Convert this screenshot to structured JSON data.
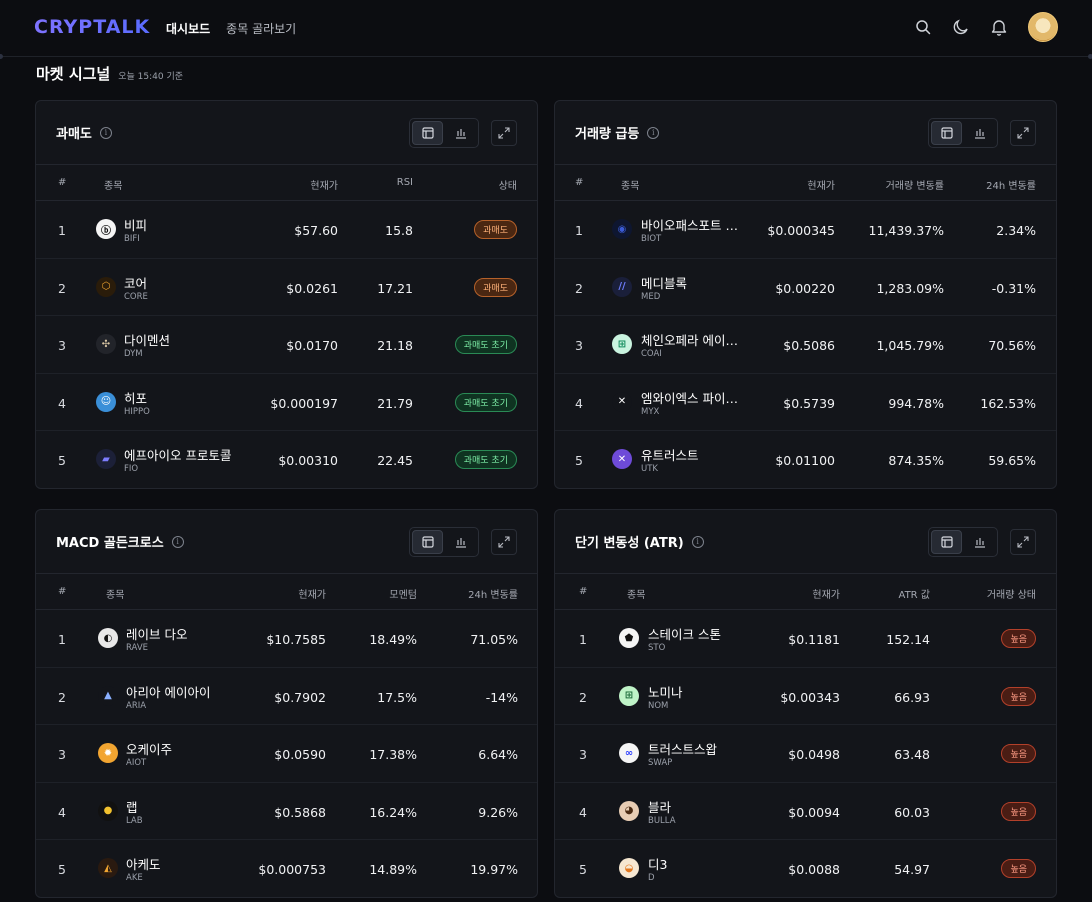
{
  "header": {
    "logo": "CRYPTALK",
    "nav": [
      "대시보드",
      "종목 골라보기"
    ],
    "icons": [
      "search-icon",
      "moon-icon",
      "bell-icon",
      "avatar"
    ]
  },
  "section": {
    "title": "마켓 시그널",
    "timestamp": "오늘 15:40 기준"
  },
  "panels": {
    "oversold": {
      "title": "과매도",
      "headers": [
        "#",
        "종목",
        "현재가",
        "RSI",
        "상태"
      ],
      "rows": [
        {
          "n": "1",
          "name": "비피",
          "sym": "BIFI",
          "price": "$57.60",
          "v1": "15.8",
          "status": "과매도"
        },
        {
          "n": "2",
          "name": "코어",
          "sym": "CORE",
          "price": "$0.0261",
          "v1": "17.21",
          "status": "과매도"
        },
        {
          "n": "3",
          "name": "다이멘션",
          "sym": "DYM",
          "price": "$0.0170",
          "v1": "21.18",
          "status": "과매도 초기"
        },
        {
          "n": "4",
          "name": "히포",
          "sym": "HIPPO",
          "price": "$0.000197",
          "v1": "21.79",
          "status": "과매도 초기"
        },
        {
          "n": "5",
          "name": "에프아이오 프로토콜",
          "sym": "FIO",
          "price": "$0.00310",
          "v1": "22.45",
          "status": "과매도 초기"
        }
      ]
    },
    "volume": {
      "title": "거래량 급등",
      "headers": [
        "#",
        "종목",
        "현재가",
        "거래량 변동률",
        "24h 변동률"
      ],
      "rows": [
        {
          "n": "1",
          "name": "바이오패스포트 …",
          "sym": "BIOT",
          "price": "$0.000345",
          "v1": "11,439.37%",
          "v2": "2.34%"
        },
        {
          "n": "2",
          "name": "메디블록",
          "sym": "MED",
          "price": "$0.00220",
          "v1": "1,283.09%",
          "v2": "-0.31%"
        },
        {
          "n": "3",
          "name": "체인오페라 에이…",
          "sym": "COAI",
          "price": "$0.5086",
          "v1": "1,045.79%",
          "v2": "70.56%"
        },
        {
          "n": "4",
          "name": "엠와이엑스 파이…",
          "sym": "MYX",
          "price": "$0.5739",
          "v1": "994.78%",
          "v2": "162.53%"
        },
        {
          "n": "5",
          "name": "유트러스트",
          "sym": "UTK",
          "price": "$0.01100",
          "v1": "874.35%",
          "v2": "59.65%"
        }
      ]
    },
    "macd": {
      "title": "MACD 골든크로스",
      "headers": [
        "#",
        "종목",
        "현재가",
        "모멘텀",
        "24h 변동률"
      ],
      "rows": [
        {
          "n": "1",
          "name": "레이브 다오",
          "sym": "RAVE",
          "price": "$10.7585",
          "v1": "18.49%",
          "v2": "71.05%"
        },
        {
          "n": "2",
          "name": "아리아 에이아이",
          "sym": "ARIA",
          "price": "$0.7902",
          "v1": "17.5%",
          "v2": "-14%"
        },
        {
          "n": "3",
          "name": "오케이주",
          "sym": "AIOT",
          "price": "$0.0590",
          "v1": "17.38%",
          "v2": "6.64%"
        },
        {
          "n": "4",
          "name": "랩",
          "sym": "LAB",
          "price": "$0.5868",
          "v1": "16.24%",
          "v2": "9.26%"
        },
        {
          "n": "5",
          "name": "아케도",
          "sym": "AKE",
          "price": "$0.000753",
          "v1": "14.89%",
          "v2": "19.97%"
        }
      ]
    },
    "atr": {
      "title": "단기 변동성 (ATR)",
      "headers": [
        "#",
        "종목",
        "현재가",
        "ATR 값",
        "거래량 상태"
      ],
      "rows": [
        {
          "n": "1",
          "name": "스테이크 스톤",
          "sym": "STO",
          "price": "$0.1181",
          "v1": "152.14",
          "status": "높음"
        },
        {
          "n": "2",
          "name": "노미나",
          "sym": "NOM",
          "price": "$0.00343",
          "v1": "66.93",
          "status": "높음"
        },
        {
          "n": "3",
          "name": "트러스트스왑",
          "sym": "SWAP",
          "price": "$0.0498",
          "v1": "63.48",
          "status": "높음"
        },
        {
          "n": "4",
          "name": "블라",
          "sym": "BULLA",
          "price": "$0.0094",
          "v1": "60.03",
          "status": "높음"
        },
        {
          "n": "5",
          "name": "디3",
          "sym": "D",
          "price": "$0.0088",
          "v1": "54.97",
          "status": "높음"
        }
      ]
    }
  },
  "colors": {
    "accent": "#6c63ff",
    "badge_orange": "#b5612a",
    "badge_green": "#2a8a55",
    "badge_red": "#b3402a"
  }
}
